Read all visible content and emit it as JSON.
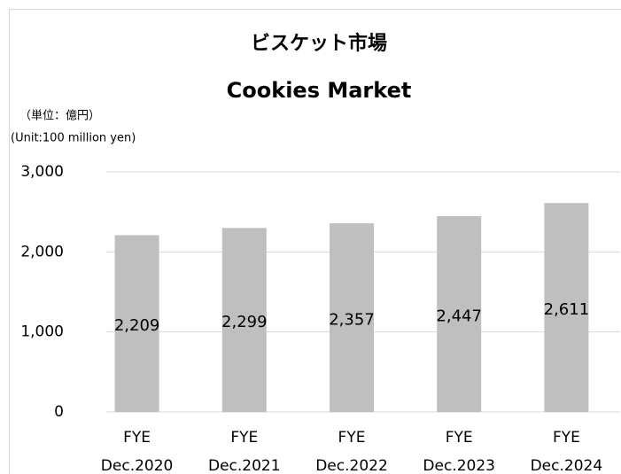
{
  "chart_data": {
    "type": "bar",
    "title": "ビスケット市場",
    "subtitle": "Cookies Market",
    "unit_labels": [
      "（単位：億円）",
      "(Unit:100 million yen)"
    ],
    "categories": [
      "FYE Dec.2020",
      "FYE Dec.2021",
      "FYE Dec.2022",
      "FYE Dec.2023",
      "FYE Dec.2024"
    ],
    "values": [
      2209,
      2299,
      2357,
      2447,
      2611
    ],
    "value_labels": [
      "2,209",
      "2,299",
      "2,357",
      "2,447",
      "2,611"
    ],
    "color": "#bfbfbf",
    "ylim": [
      0,
      3000
    ],
    "yticks": [
      0,
      {
        "value": 1000,
        "label": "1,000"
      },
      {
        "value": 2000,
        "label": "2,000"
      },
      {
        "value": 3000,
        "label": "3,000"
      }
    ],
    "grid": true
  }
}
